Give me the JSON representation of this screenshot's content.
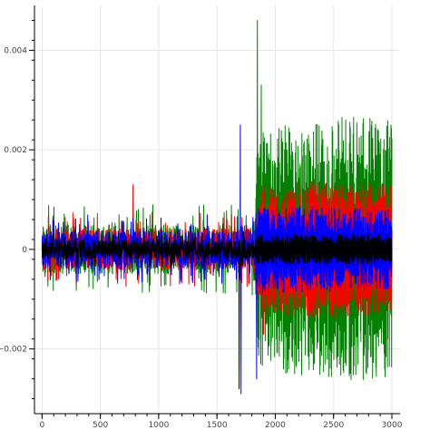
{
  "chart_data": {
    "type": "line",
    "title": "",
    "xlabel": "",
    "ylabel": "",
    "xlim": [
      -65,
      3070
    ],
    "ylim": [
      -0.0033,
      0.0049
    ],
    "grid": true,
    "legend": "none",
    "x_ticks": [
      0,
      500,
      1000,
      1500,
      2000,
      2500,
      3000
    ],
    "x_tick_labels": [
      "0",
      "500",
      "1000",
      "1500",
      "2000",
      "2500",
      "3000"
    ],
    "y_ticks": [
      -0.002,
      0,
      0.002,
      0.004
    ],
    "y_tick_labels": [
      "−0.002",
      "0",
      "0.002",
      "0.004"
    ],
    "sample_range": [
      0,
      3000
    ],
    "series": [
      {
        "color": "#008000",
        "profile": [
          [
            0,
            0.0009
          ],
          [
            1800,
            0.0009
          ],
          [
            1850,
            0.0022
          ],
          [
            1900,
            0.0024
          ],
          [
            2100,
            0.0025
          ],
          [
            2500,
            0.0026
          ],
          [
            2600,
            0.0027
          ],
          [
            3000,
            0.0026
          ]
        ],
        "peaks": [
          {
            "x": 1845,
            "y": 0.0046
          },
          {
            "x": 1880,
            "y": 0.0033
          },
          {
            "x": 1875,
            "y": -0.0023
          }
        ]
      },
      {
        "color": "#ff0000",
        "profile": [
          [
            0,
            0.00075
          ],
          [
            1800,
            0.00075
          ],
          [
            1900,
            0.0013
          ],
          [
            2500,
            0.0014
          ],
          [
            3000,
            0.0013
          ]
        ],
        "peaks": [
          {
            "x": 780,
            "y": 0.0013
          },
          {
            "x": 1900,
            "y": -0.0017
          }
        ]
      },
      {
        "color": "#0000ff",
        "profile": [
          [
            0,
            0.0007
          ],
          [
            1800,
            0.0007
          ],
          [
            1900,
            0.0009
          ],
          [
            3000,
            0.0008
          ]
        ],
        "peaks": [
          {
            "x": 1700,
            "y": 0.0025
          },
          {
            "x": 1705,
            "y": -0.0029
          },
          {
            "x": 1840,
            "y": -0.0026
          }
        ]
      },
      {
        "color": "#000000",
        "profile": [
          [
            0,
            0.00035
          ],
          [
            1800,
            0.00035
          ],
          [
            1900,
            0.0003
          ],
          [
            3000,
            0.0003
          ]
        ],
        "peaks": [
          {
            "x": 1690,
            "y": -0.0028
          }
        ]
      }
    ]
  }
}
